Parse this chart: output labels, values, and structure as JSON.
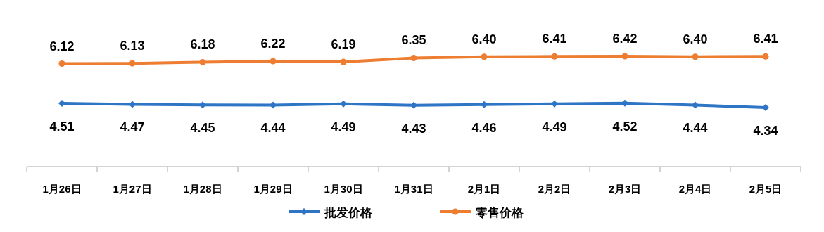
{
  "chart_data": {
    "type": "line",
    "categories": [
      "1月26日",
      "1月27日",
      "1月28日",
      "1月29日",
      "1月30日",
      "1月31日",
      "2月1日",
      "2月2日",
      "2月3日",
      "2月4日",
      "2月5日"
    ],
    "series": [
      {
        "name": "批发价格",
        "color": "#2e75c6",
        "marker": "diamond",
        "values": [
          4.51,
          4.47,
          4.45,
          4.44,
          4.49,
          4.43,
          4.46,
          4.49,
          4.52,
          4.44,
          4.34
        ],
        "value_labels": [
          "4.51",
          "4.47",
          "4.45",
          "4.44",
          "4.49",
          "4.43",
          "4.46",
          "4.49",
          "4.52",
          "4.44",
          "4.34"
        ]
      },
      {
        "name": "零售价格",
        "color": "#ed7d31",
        "marker": "circle",
        "values": [
          6.12,
          6.13,
          6.18,
          6.22,
          6.19,
          6.35,
          6.4,
          6.41,
          6.42,
          6.4,
          6.41
        ],
        "value_labels": [
          "6.12",
          "6.13",
          "6.18",
          "6.22",
          "6.19",
          "6.35",
          "6.40",
          "6.41",
          "6.42",
          "6.40",
          "6.41"
        ]
      }
    ],
    "tick_labels": "x",
    "legend": "bottom"
  }
}
